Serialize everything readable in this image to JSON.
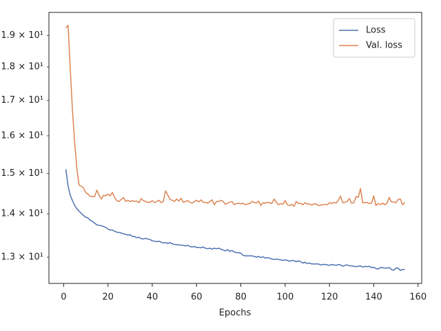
{
  "chart_data": {
    "type": "line",
    "xlabel": "Epochs",
    "yscale": "log",
    "legend": "upper right",
    "x": [
      1,
      2,
      3,
      4,
      5,
      6,
      7,
      8,
      9,
      10,
      11,
      12,
      13,
      14,
      15,
      16,
      17,
      18,
      19,
      20,
      21,
      22,
      23,
      24,
      25,
      26,
      27,
      28,
      29,
      30,
      31,
      32,
      33,
      34,
      35,
      36,
      37,
      38,
      39,
      40,
      41,
      42,
      43,
      44,
      45,
      46,
      47,
      48,
      49,
      50,
      51,
      52,
      53,
      54,
      55,
      56,
      57,
      58,
      59,
      60,
      61,
      62,
      63,
      64,
      65,
      66,
      67,
      68,
      69,
      70,
      71,
      72,
      73,
      74,
      75,
      76,
      77,
      78,
      79,
      80,
      81,
      82,
      83,
      84,
      85,
      86,
      87,
      88,
      89,
      90,
      91,
      92,
      93,
      94,
      95,
      96,
      97,
      98,
      99,
      100,
      101,
      102,
      103,
      104,
      105,
      106,
      107,
      108,
      109,
      110,
      111,
      112,
      113,
      114,
      115,
      116,
      117,
      118,
      119,
      120,
      121,
      122,
      123,
      124,
      125,
      126,
      127,
      128,
      129,
      130,
      131,
      132,
      133,
      134,
      135,
      136,
      137,
      138,
      139,
      140,
      141,
      142,
      143,
      144,
      145,
      146,
      147,
      148,
      149,
      150,
      151,
      152,
      153,
      154
    ],
    "series": [
      {
        "name": "Loss",
        "color": "#4c72b0",
        "values": [
          15.11,
          14.68,
          14.45,
          14.32,
          14.2,
          14.12,
          14.06,
          14.01,
          13.96,
          13.92,
          13.9,
          13.85,
          13.82,
          13.78,
          13.74,
          13.73,
          13.72,
          13.7,
          13.68,
          13.64,
          13.62,
          13.62,
          13.59,
          13.57,
          13.56,
          13.55,
          13.53,
          13.52,
          13.5,
          13.51,
          13.47,
          13.47,
          13.44,
          13.45,
          13.42,
          13.41,
          13.43,
          13.41,
          13.4,
          13.37,
          13.36,
          13.35,
          13.36,
          13.34,
          13.32,
          13.33,
          13.31,
          13.33,
          13.3,
          13.29,
          13.28,
          13.28,
          13.27,
          13.27,
          13.25,
          13.27,
          13.24,
          13.23,
          13.24,
          13.22,
          13.22,
          13.21,
          13.23,
          13.2,
          13.19,
          13.2,
          13.18,
          13.2,
          13.19,
          13.2,
          13.18,
          13.16,
          13.14,
          13.17,
          13.13,
          13.15,
          13.12,
          13.1,
          13.1,
          13.09,
          13.04,
          13.03,
          13.03,
          13.03,
          13.03,
          13.02,
          13.0,
          13.02,
          12.99,
          13.01,
          12.98,
          12.99,
          12.98,
          12.96,
          12.95,
          12.96,
          12.95,
          12.94,
          12.93,
          12.94,
          12.93,
          12.91,
          12.93,
          12.92,
          12.9,
          12.92,
          12.9,
          12.87,
          12.89,
          12.86,
          12.87,
          12.85,
          12.85,
          12.85,
          12.85,
          12.83,
          12.84,
          12.84,
          12.83,
          12.82,
          12.84,
          12.83,
          12.82,
          12.84,
          12.83,
          12.8,
          12.82,
          12.83,
          12.81,
          12.81,
          12.8,
          12.79,
          12.8,
          12.81,
          12.78,
          12.8,
          12.79,
          12.8,
          12.77,
          12.78,
          12.75,
          12.74,
          12.77,
          12.77,
          12.76,
          12.76,
          12.77,
          12.73,
          12.71,
          12.76,
          12.76,
          12.71,
          12.73,
          12.73
        ]
      },
      {
        "name": "Val. loss",
        "color": "#dd8452",
        "values": [
          19.24,
          19.33,
          17.93,
          16.7,
          15.8,
          15.1,
          14.7,
          14.68,
          14.63,
          14.52,
          14.48,
          14.43,
          14.42,
          14.42,
          14.58,
          14.45,
          14.36,
          14.45,
          14.44,
          14.48,
          14.44,
          14.52,
          14.4,
          14.32,
          14.3,
          14.35,
          14.4,
          14.3,
          14.33,
          14.3,
          14.32,
          14.3,
          14.31,
          14.27,
          14.37,
          14.32,
          14.3,
          14.28,
          14.28,
          14.32,
          14.27,
          14.3,
          14.33,
          14.27,
          14.3,
          14.56,
          14.46,
          14.35,
          14.33,
          14.3,
          14.36,
          14.31,
          14.38,
          14.28,
          14.3,
          14.32,
          14.28,
          14.26,
          14.3,
          14.33,
          14.29,
          14.34,
          14.28,
          14.28,
          14.26,
          14.3,
          14.34,
          14.22,
          14.3,
          14.3,
          14.33,
          14.3,
          14.23,
          14.26,
          14.28,
          14.3,
          14.22,
          14.25,
          14.26,
          14.24,
          14.26,
          14.22,
          14.24,
          14.25,
          14.3,
          14.28,
          14.26,
          14.31,
          14.2,
          14.27,
          14.26,
          14.28,
          14.27,
          14.25,
          14.36,
          14.28,
          14.22,
          14.25,
          14.23,
          14.32,
          14.22,
          14.2,
          14.23,
          14.18,
          14.3,
          14.25,
          14.26,
          14.22,
          14.27,
          14.24,
          14.24,
          14.21,
          14.24,
          14.24,
          14.2,
          14.21,
          14.22,
          14.23,
          14.22,
          14.27,
          14.25,
          14.28,
          14.26,
          14.33,
          14.43,
          14.27,
          14.28,
          14.3,
          14.37,
          14.26,
          14.27,
          14.42,
          14.4,
          14.62,
          14.27,
          14.27,
          14.28,
          14.25,
          14.26,
          14.44,
          14.2,
          14.25,
          14.22,
          14.26,
          14.22,
          14.26,
          14.4,
          14.29,
          14.29,
          14.27,
          14.35,
          14.36,
          14.22,
          14.28
        ]
      }
    ],
    "xlim": [
      -6.65,
      161.65
    ],
    "xticks": [
      0,
      20,
      40,
      60,
      80,
      100,
      120,
      140,
      160
    ],
    "ylim": [
      12.43,
      19.76
    ],
    "yticks": [
      {
        "value": 13,
        "label": "1.3 × 10¹"
      },
      {
        "value": 14,
        "label": "1.4 × 10¹"
      },
      {
        "value": 15,
        "label": "1.5 × 10¹"
      },
      {
        "value": 16,
        "label": "1.6 × 10¹"
      },
      {
        "value": 17,
        "label": "1.7 × 10¹"
      },
      {
        "value": 18,
        "label": "1.8 × 10¹"
      },
      {
        "value": 19,
        "label": "1.9 × 10¹"
      }
    ]
  }
}
